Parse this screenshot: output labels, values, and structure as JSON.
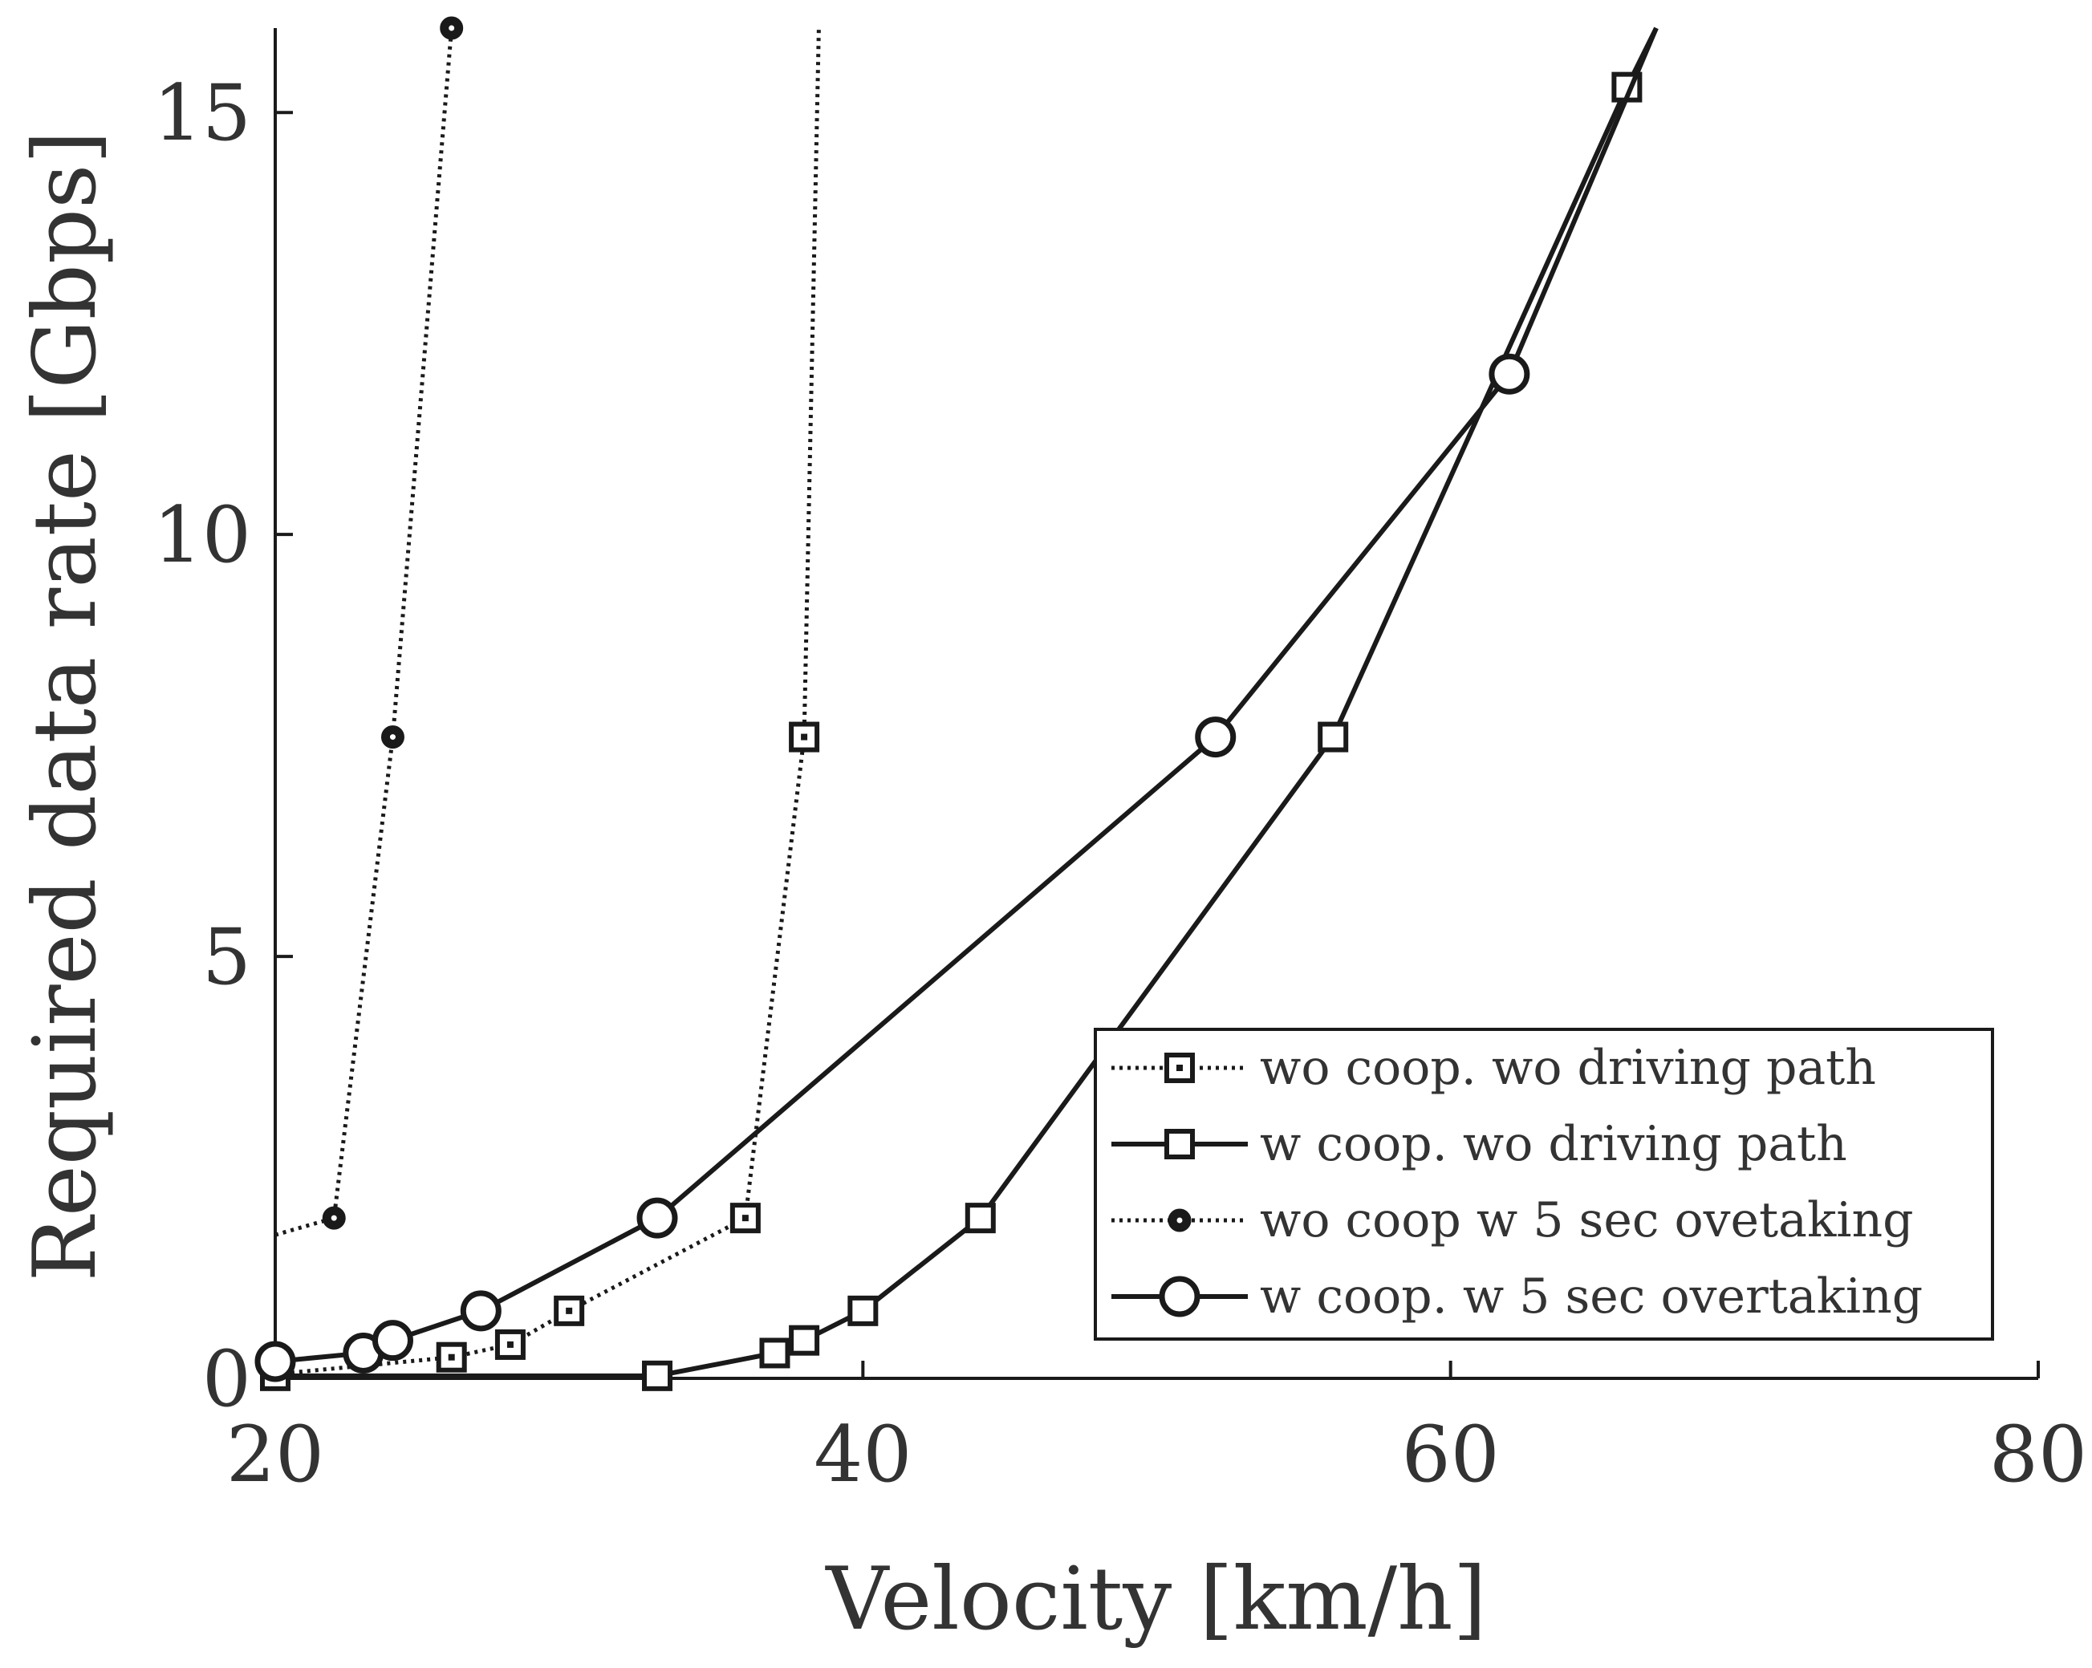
{
  "chart_data": {
    "type": "line",
    "title": "",
    "xlabel": "Velocity [km/h]",
    "ylabel": "Required data rate [Gbps]",
    "xlim": [
      20,
      80
    ],
    "ylim": [
      0,
      16
    ],
    "xticks": [
      20,
      40,
      60,
      80
    ],
    "yticks": [
      0,
      5,
      10,
      15
    ],
    "xtick_labels": [
      "20",
      "40",
      "60",
      "80"
    ],
    "ytick_labels": [
      "0",
      "5",
      "10",
      "15"
    ],
    "grid": false,
    "legend_position": "bottom-right",
    "series": [
      {
        "name": "wo coop. wo driving path",
        "line": "dotted",
        "marker": "square-dot",
        "x": [
          20,
          26,
          28,
          30,
          36,
          38,
          38.5
        ],
        "y": [
          0.05,
          0.25,
          0.4,
          0.8,
          1.9,
          7.6,
          16
        ],
        "marker_count": 6
      },
      {
        "name": "w coop. wo driving path",
        "line": "solid",
        "marker": "square",
        "x": [
          20,
          33,
          37,
          38,
          40,
          44,
          56,
          66,
          67
        ],
        "y": [
          0.03,
          0.03,
          0.3,
          0.45,
          0.8,
          1.9,
          7.6,
          15.3,
          16
        ],
        "marker_count": 8
      },
      {
        "name": "wo coop w 5 sec ovetaking",
        "line": "dotted",
        "marker": "dot",
        "x": [
          20,
          22,
          24,
          26
        ],
        "y": [
          1.7,
          1.9,
          7.6,
          16
        ],
        "marker_count": 3,
        "marker_start": 1
      },
      {
        "name": "w coop. w 5 sec overtaking",
        "line": "solid",
        "marker": "circle",
        "x": [
          20,
          23,
          24,
          27,
          33,
          52,
          62,
          67
        ],
        "y": [
          0.2,
          0.3,
          0.45,
          0.8,
          1.9,
          7.6,
          11.9,
          16
        ],
        "marker_count": 7
      }
    ]
  }
}
